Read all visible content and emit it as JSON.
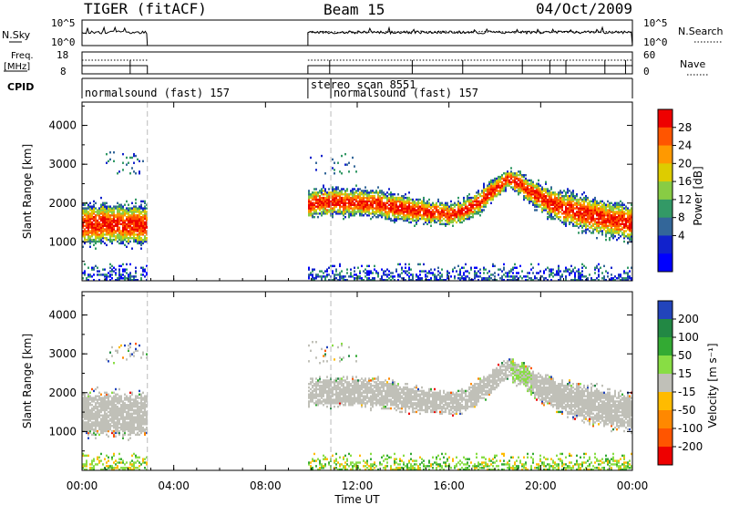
{
  "header": {
    "radar_title": "TIGER (fitACF)",
    "beam_label": "Beam 15",
    "date_label": "04/Oct/2009"
  },
  "top_panels": {
    "nsky_label": "N.Sky",
    "nsky_ticks": [
      "10^5",
      "10^0"
    ],
    "nsearch_label": "N.Search",
    "nsearch_ticks": [
      "10^5",
      "10^0"
    ],
    "freq_label_line1": "Freq.",
    "freq_label_line2": "[MHz]",
    "freq_ticks": [
      "18",
      "8"
    ],
    "nave_label": "Nave",
    "nave_ticks": [
      "60",
      "0"
    ],
    "cpid_label": "CPID"
  },
  "cpid_segments": [
    {
      "start": 0.0,
      "end": 2.85,
      "label": "normalsound (fast) 157"
    },
    {
      "start": 9.85,
      "end": 10.85,
      "label": "stereo_scan 8551"
    },
    {
      "start": 10.85,
      "end": 24.0,
      "label": "normalsound (fast) 157"
    }
  ],
  "data_gaps": [
    {
      "start": 2.85,
      "end": 9.85
    }
  ],
  "power_colorbar": {
    "title": "Power [dB]",
    "ticks": [
      "28",
      "24",
      "20",
      "16",
      "12",
      "8",
      "4"
    ],
    "colors": [
      "#ee0000",
      "#ff5500",
      "#ff9900",
      "#ddcc00",
      "#88cc44",
      "#339966",
      "#336699",
      "#1122cc",
      "#0000ff"
    ]
  },
  "velocity_colorbar": {
    "title": "Velocity [m s⁻¹]",
    "ticks": [
      "200",
      "100",
      "50",
      "15",
      "-15",
      "-50",
      "-100",
      "-200"
    ],
    "colors": [
      "#2244bb",
      "#228844",
      "#33aa33",
      "#88dd44",
      "#c0c0b8",
      "#ffbb00",
      "#ff8800",
      "#ff5500",
      "#ee0000"
    ]
  },
  "chart_data": [
    {
      "type": "heatmap",
      "name": "power",
      "ylabel": "Slant Range [km]",
      "yticks": [
        "4000",
        "3000",
        "2000",
        "1000"
      ],
      "ylim": [
        0,
        4600
      ],
      "xlim": [
        0,
        24
      ],
      "echo_band": {
        "hours": [
          0,
          1,
          2,
          2.85,
          9.85,
          10.5,
          12,
          13,
          14,
          15,
          16,
          16.5,
          17,
          18,
          18.5,
          19,
          20,
          21,
          22,
          23,
          24
        ],
        "center": [
          1450,
          1450,
          1420,
          1420,
          1950,
          2000,
          2000,
          1950,
          1850,
          1750,
          1700,
          1750,
          1900,
          2350,
          2600,
          2500,
          2100,
          1850,
          1700,
          1550,
          1450
        ],
        "halfwidth": [
          450,
          450,
          450,
          450,
          300,
          300,
          300,
          300,
          300,
          250,
          250,
          250,
          250,
          250,
          200,
          250,
          300,
          350,
          400,
          400,
          400
        ]
      }
    },
    {
      "type": "heatmap",
      "name": "velocity",
      "ylabel": "Slant Range [km]",
      "yticks": [
        "4000",
        "3000",
        "2000",
        "1000"
      ],
      "ylim": [
        0,
        4600
      ],
      "xlim": [
        0,
        24
      ]
    }
  ],
  "x_axis": {
    "ticks": [
      "00:00",
      "04:00",
      "08:00",
      "12:00",
      "16:00",
      "20:00",
      "00:00"
    ],
    "tick_hours": [
      0,
      4,
      8,
      12,
      16,
      20,
      24
    ],
    "label": "Time UT"
  }
}
